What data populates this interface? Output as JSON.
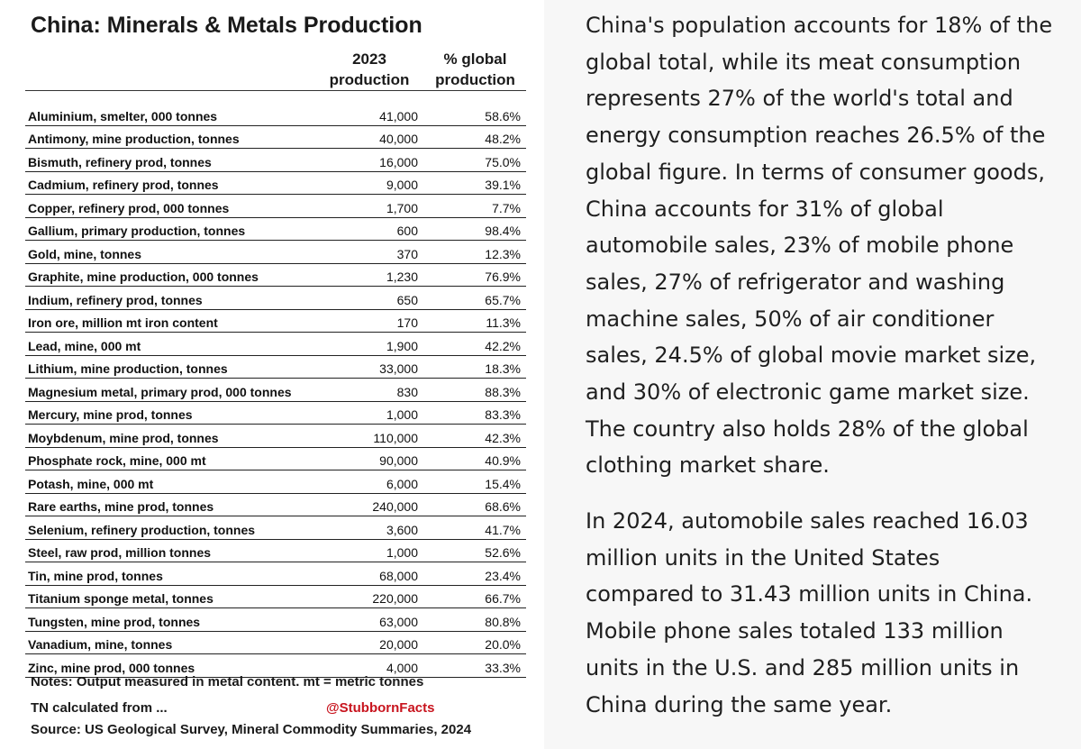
{
  "table": {
    "title": "China: Minerals & Metals Production",
    "header_prod_line1": "2023",
    "header_prod_line2": "production",
    "header_pct_line1": "% global",
    "header_pct_line2": "production",
    "rows": [
      {
        "name": "Aluminium, smelter, 000 tonnes",
        "production": "41,000",
        "pct": "58.6%"
      },
      {
        "name": "Antimony, mine production, tonnes",
        "production": "40,000",
        "pct": "48.2%"
      },
      {
        "name": "Bismuth, refinery prod, tonnes",
        "production": "16,000",
        "pct": "75.0%"
      },
      {
        "name": "Cadmium, refinery prod, tonnes",
        "production": "9,000",
        "pct": "39.1%"
      },
      {
        "name": "Copper, refinery prod, 000 tonnes",
        "production": "1,700",
        "pct": "7.7%"
      },
      {
        "name": "Gallium, primary production, tonnes",
        "production": "600",
        "pct": "98.4%"
      },
      {
        "name": "Gold, mine, tonnes",
        "production": "370",
        "pct": "12.3%"
      },
      {
        "name": "Graphite, mine production, 000 tonnes",
        "production": "1,230",
        "pct": "76.9%"
      },
      {
        "name": "Indium, refinery prod, tonnes",
        "production": "650",
        "pct": "65.7%"
      },
      {
        "name": "Iron ore, million mt iron content",
        "production": "170",
        "pct": "11.3%"
      },
      {
        "name": "Lead, mine, 000 mt",
        "production": "1,900",
        "pct": "42.2%"
      },
      {
        "name": "Lithium, mine production, tonnes",
        "production": "33,000",
        "pct": "18.3%"
      },
      {
        "name": "Magnesium metal, primary prod, 000 tonnes",
        "production": "830",
        "pct": "88.3%"
      },
      {
        "name": "Mercury, mine prod, tonnes",
        "production": "1,000",
        "pct": "83.3%"
      },
      {
        "name": "Moybdenum, mine prod, tonnes",
        "production": "110,000",
        "pct": "42.3%"
      },
      {
        "name": "Phosphate rock, mine, 000 mt",
        "production": "90,000",
        "pct": "40.9%"
      },
      {
        "name": "Potash, mine, 000 mt",
        "production": "6,000",
        "pct": "15.4%"
      },
      {
        "name": "Rare earths, mine prod, tonnes",
        "production": "240,000",
        "pct": "68.6%"
      },
      {
        "name": "Selenium, refinery production, tonnes",
        "production": "3,600",
        "pct": "41.7%"
      },
      {
        "name": "Steel, raw prod, million tonnes",
        "production": "1,000",
        "pct": "52.6%"
      },
      {
        "name": "Tin, mine prod, tonnes",
        "production": "68,000",
        "pct": "23.4%"
      },
      {
        "name": "Titanium sponge metal, tonnes",
        "production": "220,000",
        "pct": "66.7%"
      },
      {
        "name": "Tungsten, mine prod, tonnes",
        "production": "63,000",
        "pct": "80.8%"
      },
      {
        "name": "Vanadium, mine, tonnes",
        "production": "20,000",
        "pct": "20.0%"
      },
      {
        "name": "Zinc, mine prod, 000 tonnes",
        "production": "4,000",
        "pct": "33.3%"
      }
    ],
    "notes": "Notes: Output measured in metal content. mt = metric tonnes",
    "calc_note": "TN calculated from ...",
    "handle": "@StubbornFacts",
    "source": "Source: US Geological Survey, Mineral Commodity Summaries, 2024"
  },
  "article": {
    "paragraph1": "China's population accounts for 18% of the global total, while its meat consumption represents 27% of the world's total and energy consumption reaches 26.5% of the global figure. In terms of consumer goods, China accounts for 31% of global automobile sales, 23% of mobile phone sales, 27% of refrigerator and washing machine sales, 50% of air conditioner sales, 24.5% of global movie market size, and 30% of electronic game market size. The country also holds 28% of the global clothing market share.",
    "paragraph2": "In 2024, automobile sales reached 16.03 million units in the United States compared to 31.43 million units in China. Mobile phone sales totaled 133 million units in the U.S. and 285 million units in China during the same year."
  },
  "colors": {
    "handle": "#c8141e",
    "right_panel_bg": "#f7f7f7"
  }
}
